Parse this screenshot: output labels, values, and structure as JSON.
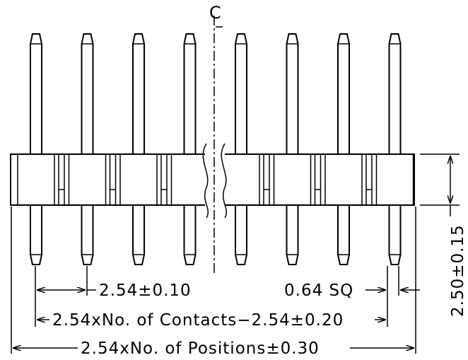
{
  "centerline_label": "C",
  "pin_count_shown": 8,
  "dimensions": {
    "pitch": "2.54±0.10",
    "pin_square": "0.64 SQ",
    "contacts_span": "2.54xNo. of Contacts−2.54±0.20",
    "positions_span": "2.54xNo. of Positions±0.30",
    "insulator_height": "2.50±0.15"
  }
}
